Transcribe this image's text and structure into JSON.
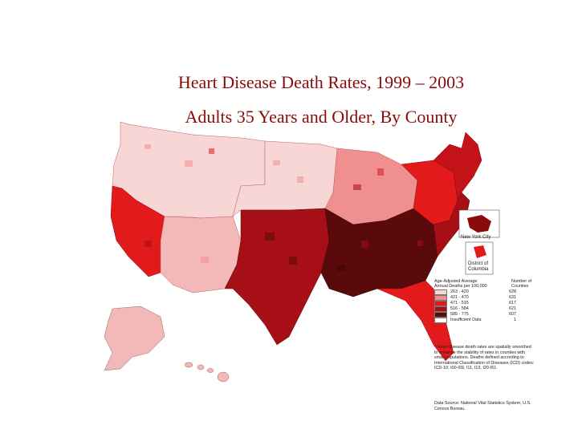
{
  "title": "Heart Disease Death Rates, 1999 – 2003",
  "subtitle": "Adults 35 Years and Older, By County",
  "insets": {
    "nyc_label": "New York City",
    "dc_label": "District of Columbia"
  },
  "legend": {
    "header_left": "Age-Adjusted Average Annual Deaths per 100,000",
    "header_right": "Number of Counties",
    "classes": [
      {
        "range": "263 - 420",
        "count": "628",
        "color": "#f9d6d6"
      },
      {
        "range": "421 - 470",
        "count": "631",
        "color": "#ef8f8f"
      },
      {
        "range": "471 - 515",
        "count": "617",
        "color": "#e31a1c"
      },
      {
        "range": "516 - 584",
        "count": "621",
        "color": "#a50f15"
      },
      {
        "range": "585 - 775",
        "count": "607",
        "color": "#5b0a0c"
      },
      {
        "range": "Insufficient Data",
        "count": "1",
        "color": "#ffffff"
      }
    ]
  },
  "note": "* Heart disease death rates are spatially smoothed to enhance the stability of rates in counties with small populations. Deaths defined according to International Classification of Diseases (ICD) codes: ICD-10: I00-I09, I11, I13, I20-I51.",
  "source": "Data Source: National Vital Statistics System, U.S. Census Bureau."
}
